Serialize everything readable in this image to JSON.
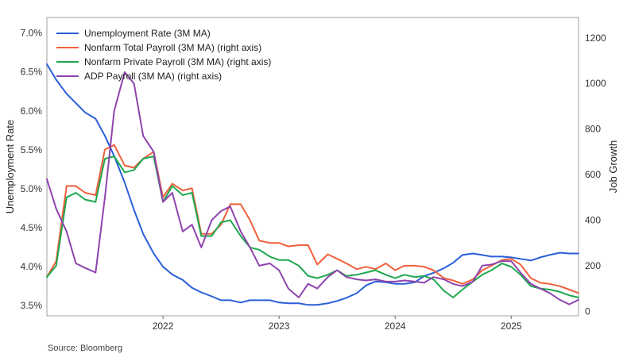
{
  "chart_data": {
    "type": "line",
    "title": "",
    "xlabel": "",
    "ylabel": "Unemployment Rate",
    "ylabel_right": "Job Growth",
    "xlim": [
      2021.0,
      2025.58
    ],
    "ylim": [
      3.37,
      7.2
    ],
    "ylim_right": [
      -20,
      1290
    ],
    "x_ticks": [
      2022,
      2023,
      2024,
      2025
    ],
    "x_tick_labels": [
      "2022",
      "2023",
      "2024",
      "2025"
    ],
    "y_ticks": [
      3.5,
      4.0,
      4.5,
      5.0,
      5.5,
      6.0,
      6.5,
      7.0
    ],
    "y_tick_labels": [
      "3.5%",
      "4.0%",
      "4.5%",
      "5.0%",
      "5.5%",
      "6.0%",
      "6.5%",
      "7.0%"
    ],
    "y_right_ticks": [
      0,
      200,
      400,
      600,
      800,
      1000,
      1200
    ],
    "y_right_tick_labels": [
      "0",
      "200",
      "400",
      "600",
      "800",
      "1000",
      "1200"
    ],
    "grid": false,
    "legend_position": "top-left",
    "source": "Source: Bloomberg",
    "series": [
      {
        "name": "Unemployment Rate (3M MA)",
        "axis": "left",
        "color": "#2b5fd9",
        "x": [
          2021.0,
          2021.08,
          2021.17,
          2021.25,
          2021.33,
          2021.42,
          2021.5,
          2021.58,
          2021.67,
          2021.75,
          2021.83,
          2021.92,
          2022.0,
          2022.08,
          2022.17,
          2022.25,
          2022.33,
          2022.42,
          2022.5,
          2022.58,
          2022.67,
          2022.75,
          2022.83,
          2022.92,
          2023.0,
          2023.08,
          2023.17,
          2023.25,
          2023.33,
          2023.42,
          2023.5,
          2023.58,
          2023.67,
          2023.75,
          2023.83,
          2023.92,
          2024.0,
          2024.08,
          2024.17,
          2024.25,
          2024.33,
          2024.42,
          2024.5,
          2024.58,
          2024.67,
          2024.75,
          2024.83,
          2024.92,
          2025.0,
          2025.08,
          2025.17,
          2025.25,
          2025.33,
          2025.42,
          2025.5,
          2025.58
        ],
        "values": [
          6.6,
          6.4,
          6.22,
          6.1,
          5.98,
          5.9,
          5.68,
          5.42,
          5.08,
          4.73,
          4.42,
          4.17,
          4.0,
          3.9,
          3.83,
          3.73,
          3.67,
          3.62,
          3.57,
          3.57,
          3.54,
          3.57,
          3.57,
          3.57,
          3.54,
          3.53,
          3.53,
          3.51,
          3.51,
          3.53,
          3.56,
          3.6,
          3.66,
          3.76,
          3.81,
          3.8,
          3.78,
          3.78,
          3.8,
          3.88,
          3.92,
          3.98,
          4.05,
          4.15,
          4.17,
          4.15,
          4.13,
          4.13,
          4.12,
          4.1,
          4.08,
          4.12,
          4.15,
          4.18,
          4.17,
          4.17
        ]
      },
      {
        "name": "Nonfarm Total Payroll (3M MA) (right axis)",
        "axis": "right",
        "color": "#f0603c",
        "x": [
          2021.0,
          2021.08,
          2021.17,
          2021.25,
          2021.33,
          2021.42,
          2021.5,
          2021.58,
          2021.67,
          2021.75,
          2021.83,
          2021.92,
          2022.0,
          2022.08,
          2022.17,
          2022.25,
          2022.33,
          2022.42,
          2022.5,
          2022.58,
          2022.67,
          2022.75,
          2022.83,
          2022.92,
          2023.0,
          2023.08,
          2023.17,
          2023.25,
          2023.33,
          2023.42,
          2023.5,
          2023.58,
          2023.67,
          2023.75,
          2023.83,
          2023.92,
          2024.0,
          2024.08,
          2024.17,
          2024.25,
          2024.33,
          2024.42,
          2024.5,
          2024.58,
          2024.67,
          2024.75,
          2024.83,
          2024.92,
          2025.0,
          2025.08,
          2025.17,
          2025.25,
          2025.33,
          2025.42,
          2025.5,
          2025.58
        ],
        "values": [
          150,
          220,
          550,
          550,
          520,
          510,
          710,
          730,
          640,
          630,
          670,
          700,
          500,
          560,
          530,
          540,
          340,
          340,
          380,
          470,
          470,
          400,
          310,
          300,
          300,
          285,
          290,
          290,
          205,
          250,
          230,
          210,
          185,
          195,
          185,
          210,
          180,
          200,
          200,
          195,
          180,
          145,
          135,
          120,
          140,
          180,
          200,
          225,
          230,
          205,
          145,
          125,
          120,
          110,
          95,
          80
        ]
      },
      {
        "name": "Nonfarm Private Payroll (3M MA) (right axis)",
        "axis": "right",
        "color": "#1fa84f",
        "x": [
          2021.0,
          2021.08,
          2021.17,
          2021.25,
          2021.33,
          2021.42,
          2021.5,
          2021.58,
          2021.67,
          2021.75,
          2021.83,
          2021.92,
          2022.0,
          2022.08,
          2022.17,
          2022.25,
          2022.33,
          2022.42,
          2022.5,
          2022.58,
          2022.67,
          2022.75,
          2022.83,
          2022.92,
          2023.0,
          2023.08,
          2023.17,
          2023.25,
          2023.33,
          2023.42,
          2023.5,
          2023.58,
          2023.67,
          2023.75,
          2023.83,
          2023.92,
          2024.0,
          2024.08,
          2024.17,
          2024.25,
          2024.33,
          2024.42,
          2024.5,
          2024.58,
          2024.67,
          2024.75,
          2024.83,
          2024.92,
          2025.0,
          2025.08,
          2025.17,
          2025.25,
          2025.33,
          2025.42,
          2025.5,
          2025.58
        ],
        "values": [
          150,
          200,
          500,
          520,
          490,
          480,
          670,
          680,
          610,
          620,
          670,
          680,
          480,
          550,
          510,
          520,
          330,
          330,
          390,
          400,
          330,
          280,
          270,
          240,
          225,
          225,
          200,
          155,
          145,
          160,
          180,
          155,
          160,
          170,
          180,
          160,
          145,
          160,
          150,
          155,
          140,
          90,
          60,
          95,
          130,
          160,
          180,
          210,
          195,
          160,
          110,
          100,
          95,
          85,
          70,
          60
        ]
      },
      {
        "name": "ADP Payroll (3M MA) (right axis)",
        "axis": "right",
        "color": "#8e44ad",
        "x": [
          2021.0,
          2021.08,
          2021.17,
          2021.25,
          2021.33,
          2021.42,
          2021.5,
          2021.58,
          2021.67,
          2021.75,
          2021.83,
          2021.92,
          2022.0,
          2022.08,
          2022.17,
          2022.25,
          2022.33,
          2022.42,
          2022.5,
          2022.58,
          2022.67,
          2022.75,
          2022.83,
          2022.92,
          2023.0,
          2023.08,
          2023.17,
          2023.25,
          2023.33,
          2023.42,
          2023.5,
          2023.58,
          2023.67,
          2023.75,
          2023.83,
          2023.92,
          2024.0,
          2024.08,
          2024.17,
          2024.25,
          2024.33,
          2024.42,
          2024.5,
          2024.58,
          2024.67,
          2024.75,
          2024.83,
          2024.92,
          2025.0,
          2025.08,
          2025.17,
          2025.25,
          2025.33,
          2025.42,
          2025.5,
          2025.58
        ],
        "values": [
          580,
          450,
          350,
          210,
          190,
          170,
          500,
          880,
          1050,
          1000,
          770,
          700,
          480,
          520,
          350,
          380,
          280,
          400,
          440,
          460,
          350,
          280,
          200,
          210,
          180,
          100,
          60,
          120,
          100,
          150,
          180,
          150,
          140,
          135,
          140,
          130,
          130,
          135,
          130,
          125,
          150,
          140,
          120,
          110,
          130,
          200,
          205,
          220,
          220,
          170,
          120,
          100,
          80,
          50,
          30,
          50
        ]
      }
    ]
  }
}
